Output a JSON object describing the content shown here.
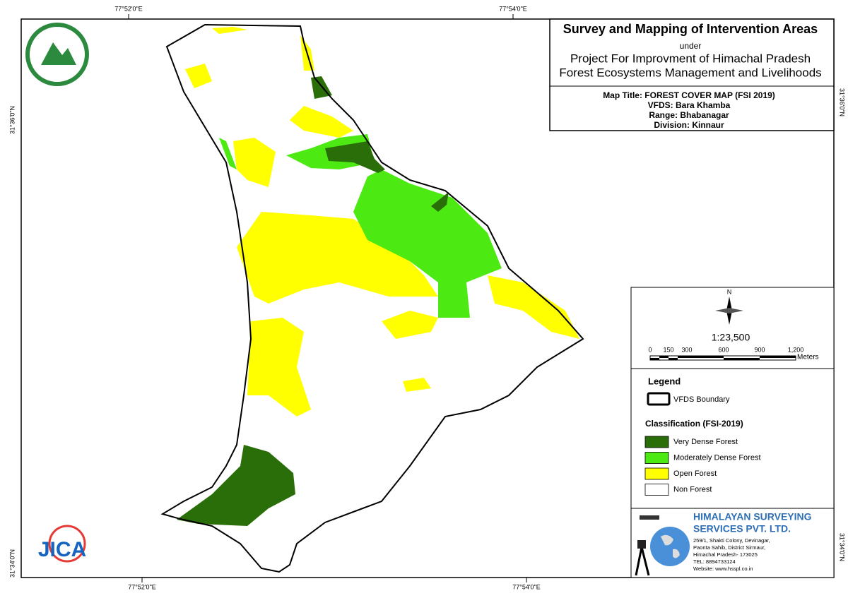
{
  "coordinates": {
    "top": [
      "77°52'0\"E",
      "77°54'0\"E"
    ],
    "bottom": [
      "77°52'0\"E",
      "77°54'0\"E"
    ],
    "left": [
      "31°36'0\"N",
      "31°34'0\"N"
    ],
    "right": [
      "31°36'0\"N",
      "31°34'0\"N"
    ]
  },
  "header": {
    "title": "Survey and Mapping of Intervention Areas",
    "under": "under",
    "project": [
      "Project For Improvment of Himachal Pradesh",
      "Forest Ecosystems Management and Livelihoods"
    ]
  },
  "map_info": [
    "Map Title: FOREST COVER MAP (FSI 2019)",
    "VFDS: Bara Khamba",
    "Range: Bhabanagar",
    "Division: Kinnaur"
  ],
  "north": "N",
  "scale": {
    "ratio": "1:23,500",
    "labels": [
      "0",
      "150",
      "300",
      "600",
      "900",
      "1,200"
    ],
    "unit": "Meters"
  },
  "legend": {
    "title": "Legend",
    "boundary": "VFDS Boundary",
    "classification": "Classification (FSI-2019)",
    "items": [
      {
        "label": "Very Dense Forest",
        "color": "#2a6e0a"
      },
      {
        "label": "Moderately Dense Forest",
        "color": "#4cea12"
      },
      {
        "label": "Open Forest",
        "color": "#ffff00"
      },
      {
        "label": "Non Forest",
        "color": "#ffffff"
      }
    ]
  },
  "logo": {
    "jica": "JICA"
  },
  "company": {
    "name": [
      "HIMALAYAN SURVEYING",
      "SERVICES PVT. LTD."
    ],
    "address": [
      "259/1, Shakti Colony, Devinagar,",
      "Paonta Sahib, District Sirmaur,",
      "Himachal Pradesh- 173025",
      "TEL: 8894733124",
      "Website: www.hsspl.co.in"
    ]
  }
}
